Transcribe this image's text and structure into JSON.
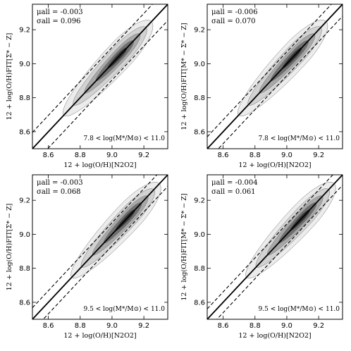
{
  "chart_data": [
    {
      "type": "contour",
      "xlabel": "12 + log(O/H)[N2O2]",
      "ylabel": "12 + log(O/H)FIT[Σ* − Z]",
      "xlim": [
        8.5,
        9.35
      ],
      "ylim": [
        8.5,
        9.35
      ],
      "xticks": [
        "8.6",
        "8.8",
        "9.0",
        "9.2"
      ],
      "yticks": [
        "8.6",
        "8.8",
        "9.0",
        "9.2"
      ],
      "mu_text": "μall = -0.003",
      "sigma_text": "σall = 0.096",
      "mass_range_text": "7.8 < log(M*/M⊙) < 11.0",
      "lines": [
        {
          "style": "solid",
          "offset": 0.0
        },
        {
          "style": "dashed",
          "offset": 0.096
        },
        {
          "style": "dashed",
          "offset": -0.096
        }
      ],
      "density_peak": [
        9.08,
        9.08
      ]
    },
    {
      "type": "contour",
      "xlabel": "12 + log(O/H)[N2O2]",
      "ylabel": "12 + log(O/H)FIT[M* − Σ* − Z]",
      "xlim": [
        8.5,
        9.35
      ],
      "ylim": [
        8.5,
        9.35
      ],
      "xticks": [
        "8.6",
        "8.8",
        "9.0",
        "9.2"
      ],
      "yticks": [
        "8.6",
        "8.8",
        "9.0",
        "9.2"
      ],
      "mu_text": "μall = -0.006",
      "sigma_text": "σall = 0.070",
      "mass_range_text": "7.8 < log(M*/M⊙) < 11.0",
      "lines": [
        {
          "style": "solid",
          "offset": 0.0
        },
        {
          "style": "dashed",
          "offset": 0.07
        },
        {
          "style": "dashed",
          "offset": -0.07
        }
      ],
      "density_peak": [
        9.08,
        9.08
      ]
    },
    {
      "type": "contour",
      "xlabel": "12 + log(O/H)[N2O2]",
      "ylabel": "12 + log(O/H)FIT[Σ* − Z]",
      "xlim": [
        8.5,
        9.35
      ],
      "ylim": [
        8.5,
        9.35
      ],
      "xticks": [
        "8.6",
        "8.8",
        "9.0",
        "9.2"
      ],
      "yticks": [
        "8.6",
        "8.8",
        "9.0",
        "9.2"
      ],
      "mu_text": "μall = -0.003",
      "sigma_text": "σall = 0.068",
      "mass_range_text": "9.5 < log(M*/M⊙) < 11.0",
      "lines": [
        {
          "style": "solid",
          "offset": 0.0
        },
        {
          "style": "dashed",
          "offset": 0.068
        },
        {
          "style": "dashed",
          "offset": -0.068
        }
      ],
      "density_peak": [
        9.1,
        9.1
      ]
    },
    {
      "type": "contour",
      "xlabel": "12 + log(O/H)[N2O2]",
      "ylabel": "12 + log(O/H)FIT[M* − Σ* − Z]",
      "xlim": [
        8.5,
        9.35
      ],
      "ylim": [
        8.5,
        9.35
      ],
      "xticks": [
        "8.6",
        "8.8",
        "9.0",
        "9.2"
      ],
      "yticks": [
        "8.6",
        "8.8",
        "9.0",
        "9.2"
      ],
      "mu_text": "μall = -0.004",
      "sigma_text": "σall = 0.061",
      "mass_range_text": "9.5 < log(M*/M⊙) < 11.0",
      "lines": [
        {
          "style": "solid",
          "offset": 0.0
        },
        {
          "style": "dashed",
          "offset": 0.061
        },
        {
          "style": "dashed",
          "offset": -0.061
        }
      ],
      "density_peak": [
        9.1,
        9.1
      ]
    }
  ]
}
